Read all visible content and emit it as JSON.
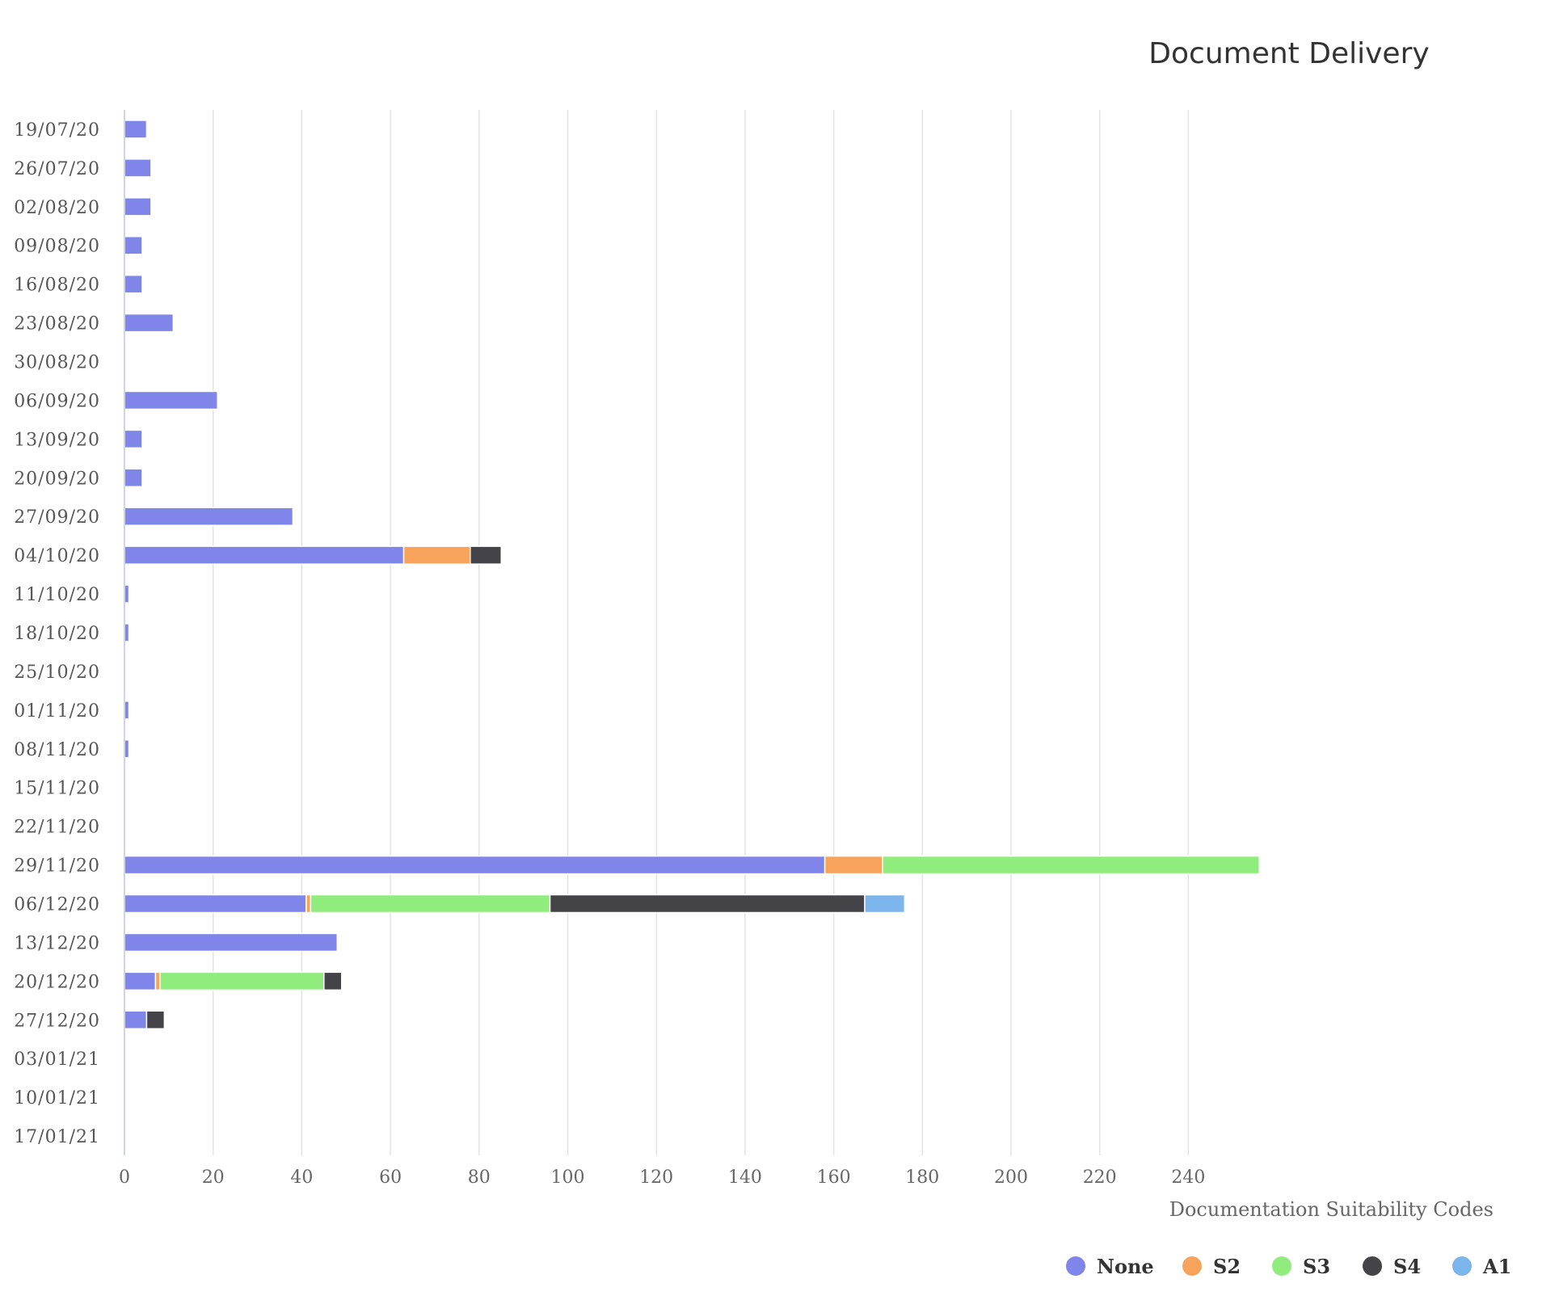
{
  "chart_data": {
    "type": "bar",
    "orientation": "horizontal",
    "stacked": true,
    "title": "Document Delivery",
    "xlabel": "Documentation Suitability Codes",
    "xlim": [
      0,
      256
    ],
    "x_ticks": [
      0,
      20,
      40,
      60,
      80,
      100,
      120,
      140,
      160,
      180,
      200,
      220,
      240
    ],
    "grid": true,
    "legend_position": "bottom-right",
    "categories": [
      "19/07/20",
      "26/07/20",
      "02/08/20",
      "09/08/20",
      "16/08/20",
      "23/08/20",
      "30/08/20",
      "06/09/20",
      "13/09/20",
      "20/09/20",
      "27/09/20",
      "04/10/20",
      "11/10/20",
      "18/10/20",
      "25/10/20",
      "01/11/20",
      "08/11/20",
      "15/11/20",
      "22/11/20",
      "29/11/20",
      "06/12/20",
      "13/12/20",
      "20/12/20",
      "27/12/20",
      "03/01/21",
      "10/01/21",
      "17/01/21"
    ],
    "series": [
      {
        "name": "None",
        "color": "#8085e9",
        "values": [
          5,
          6,
          6,
          4,
          4,
          11,
          0,
          21,
          4,
          4,
          38,
          63,
          1,
          1,
          0,
          1,
          1,
          0,
          0,
          158,
          41,
          48,
          7,
          5,
          0,
          0,
          0
        ]
      },
      {
        "name": "S2",
        "color": "#f7a35c",
        "values": [
          0,
          0,
          0,
          0,
          0,
          0,
          0,
          0,
          0,
          0,
          0,
          15,
          0,
          0,
          0,
          0,
          0,
          0,
          0,
          13,
          1,
          0,
          1,
          0,
          0,
          0,
          0
        ]
      },
      {
        "name": "S3",
        "color": "#90ed7d",
        "values": [
          0,
          0,
          0,
          0,
          0,
          0,
          0,
          0,
          0,
          0,
          0,
          0,
          0,
          0,
          0,
          0,
          0,
          0,
          0,
          85,
          54,
          0,
          37,
          0,
          0,
          0,
          0
        ]
      },
      {
        "name": "S4",
        "color": "#434348",
        "values": [
          0,
          0,
          0,
          0,
          0,
          0,
          0,
          0,
          0,
          0,
          0,
          7,
          0,
          0,
          0,
          0,
          0,
          0,
          0,
          0,
          71,
          0,
          4,
          4,
          0,
          0,
          0
        ]
      },
      {
        "name": "A1",
        "color": "#7cb5ec",
        "values": [
          0,
          0,
          0,
          0,
          0,
          0,
          0,
          0,
          0,
          0,
          0,
          0,
          0,
          0,
          0,
          0,
          0,
          0,
          0,
          0,
          9,
          0,
          0,
          0,
          0,
          0,
          0
        ]
      }
    ]
  }
}
